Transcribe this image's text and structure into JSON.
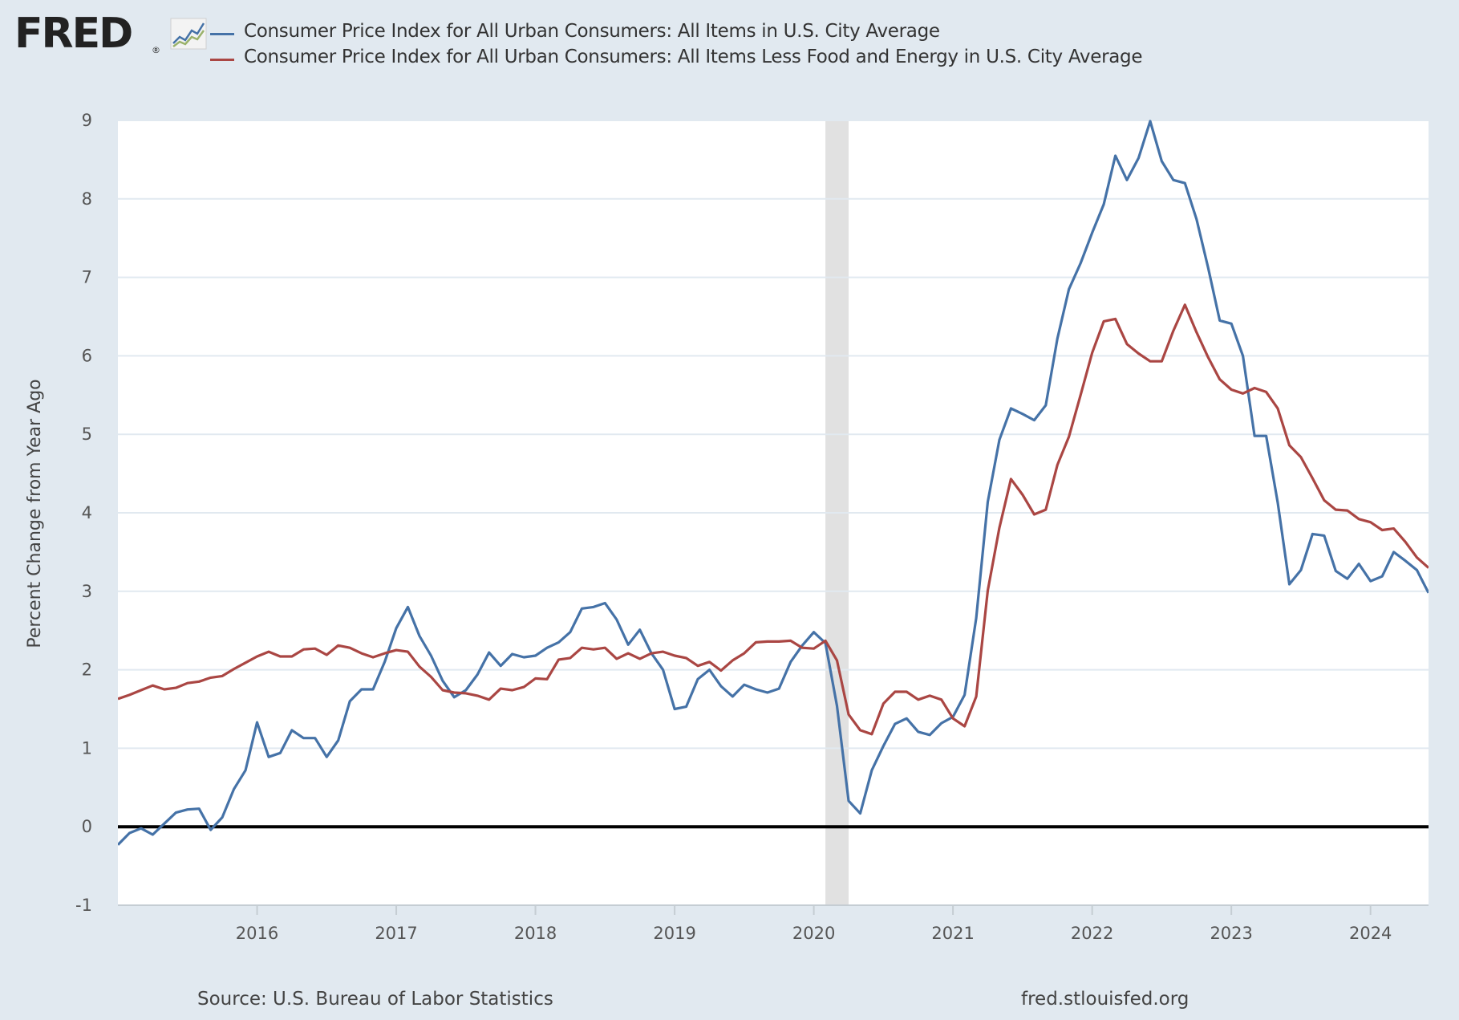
{
  "logo": {
    "text": "FRED",
    "reg": "®"
  },
  "footer": {
    "source": "Source: U.S. Bureau of Labor Statistics",
    "site": "fred.stlouisfed.org"
  },
  "colors": {
    "background": "#e1e9f0",
    "plot": "#ffffff",
    "grid": "#e1e9f0",
    "recession": "#e1e1e1",
    "zero_line": "#000000"
  },
  "chart_data": {
    "type": "line",
    "title": "",
    "xlabel": "",
    "ylabel": "Percent Change from Year Ago",
    "ylim": [
      -1,
      9
    ],
    "xlim": [
      "2015-01",
      "2024-06"
    ],
    "y_ticks": [
      "-1",
      "0",
      "1",
      "2",
      "3",
      "4",
      "5",
      "6",
      "7",
      "8",
      "9"
    ],
    "x_ticks": [
      "2016",
      "2017",
      "2018",
      "2019",
      "2020",
      "2021",
      "2022",
      "2023",
      "2024"
    ],
    "grid": true,
    "legend": "top",
    "recession": {
      "start": "2020-02",
      "end": "2020-04"
    },
    "x": [
      "2015-01",
      "2015-02",
      "2015-03",
      "2015-04",
      "2015-05",
      "2015-06",
      "2015-07",
      "2015-08",
      "2015-09",
      "2015-10",
      "2015-11",
      "2015-12",
      "2016-01",
      "2016-02",
      "2016-03",
      "2016-04",
      "2016-05",
      "2016-06",
      "2016-07",
      "2016-08",
      "2016-09",
      "2016-10",
      "2016-11",
      "2016-12",
      "2017-01",
      "2017-02",
      "2017-03",
      "2017-04",
      "2017-05",
      "2017-06",
      "2017-07",
      "2017-08",
      "2017-09",
      "2017-10",
      "2017-11",
      "2017-12",
      "2018-01",
      "2018-02",
      "2018-03",
      "2018-04",
      "2018-05",
      "2018-06",
      "2018-07",
      "2018-08",
      "2018-09",
      "2018-10",
      "2018-11",
      "2018-12",
      "2019-01",
      "2019-02",
      "2019-03",
      "2019-04",
      "2019-05",
      "2019-06",
      "2019-07",
      "2019-08",
      "2019-09",
      "2019-10",
      "2019-11",
      "2019-12",
      "2020-01",
      "2020-02",
      "2020-03",
      "2020-04",
      "2020-05",
      "2020-06",
      "2020-07",
      "2020-08",
      "2020-09",
      "2020-10",
      "2020-11",
      "2020-12",
      "2021-01",
      "2021-02",
      "2021-03",
      "2021-04",
      "2021-05",
      "2021-06",
      "2021-07",
      "2021-08",
      "2021-09",
      "2021-10",
      "2021-11",
      "2021-12",
      "2022-01",
      "2022-02",
      "2022-03",
      "2022-04",
      "2022-05",
      "2022-06",
      "2022-07",
      "2022-08",
      "2022-09",
      "2022-10",
      "2022-11",
      "2022-12",
      "2023-01",
      "2023-02",
      "2023-03",
      "2023-04",
      "2023-05",
      "2023-06",
      "2023-07",
      "2023-08",
      "2023-09",
      "2023-10",
      "2023-11",
      "2023-12",
      "2024-01",
      "2024-02",
      "2024-03",
      "2024-04",
      "2024-05",
      "2024-06"
    ],
    "series": [
      {
        "name": "Consumer Price Index for All Urban Consumers: All Items in U.S. City Average",
        "color": "#4572a7",
        "values": [
          -0.23,
          -0.08,
          -0.02,
          -0.1,
          0.04,
          0.18,
          0.22,
          0.23,
          -0.04,
          0.12,
          0.48,
          0.72,
          1.33,
          0.89,
          0.94,
          1.23,
          1.13,
          1.13,
          0.89,
          1.1,
          1.6,
          1.75,
          1.75,
          2.1,
          2.53,
          2.8,
          2.43,
          2.18,
          1.86,
          1.65,
          1.74,
          1.94,
          2.22,
          2.05,
          2.2,
          2.16,
          2.18,
          2.28,
          2.35,
          2.48,
          2.78,
          2.8,
          2.85,
          2.64,
          2.32,
          2.51,
          2.21,
          2.0,
          1.5,
          1.53,
          1.88,
          2.0,
          1.79,
          1.66,
          1.81,
          1.75,
          1.71,
          1.76,
          2.1,
          2.31,
          2.48,
          2.34,
          1.54,
          0.33,
          0.17,
          0.72,
          1.03,
          1.31,
          1.38,
          1.21,
          1.17,
          1.32,
          1.4,
          1.68,
          2.66,
          4.14,
          4.93,
          5.33,
          5.26,
          5.18,
          5.37,
          6.22,
          6.85,
          7.18,
          7.57,
          7.93,
          8.55,
          8.24,
          8.52,
          8.99,
          8.48,
          8.24,
          8.2,
          7.74,
          7.12,
          6.45,
          6.41,
          6.0,
          4.98,
          4.98,
          4.13,
          3.09,
          3.27,
          3.73,
          3.71,
          3.26,
          3.16,
          3.35,
          3.13,
          3.19,
          3.5,
          3.39,
          3.27,
          2.98
        ]
      },
      {
        "name": "Consumer Price Index for All Urban Consumers: All Items Less Food and Energy in U.S. City Average",
        "color": "#aa4643",
        "values": [
          1.63,
          1.68,
          1.74,
          1.8,
          1.75,
          1.77,
          1.83,
          1.85,
          1.9,
          1.92,
          2.01,
          2.09,
          2.17,
          2.23,
          2.17,
          2.17,
          2.26,
          2.27,
          2.19,
          2.31,
          2.28,
          2.21,
          2.16,
          2.21,
          2.25,
          2.23,
          2.04,
          1.91,
          1.74,
          1.71,
          1.7,
          1.67,
          1.62,
          1.76,
          1.74,
          1.78,
          1.89,
          1.88,
          2.13,
          2.15,
          2.28,
          2.26,
          2.28,
          2.14,
          2.21,
          2.14,
          2.21,
          2.23,
          2.18,
          2.15,
          2.05,
          2.1,
          1.99,
          2.12,
          2.21,
          2.35,
          2.36,
          2.36,
          2.37,
          2.28,
          2.27,
          2.37,
          2.12,
          1.43,
          1.23,
          1.18,
          1.57,
          1.72,
          1.72,
          1.62,
          1.67,
          1.62,
          1.38,
          1.28,
          1.66,
          3.01,
          3.81,
          4.43,
          4.23,
          3.98,
          4.04,
          4.61,
          4.97,
          5.5,
          6.04,
          6.44,
          6.47,
          6.15,
          6.03,
          5.93,
          5.93,
          6.32,
          6.65,
          6.3,
          5.98,
          5.7,
          5.57,
          5.52,
          5.59,
          5.54,
          5.33,
          4.86,
          4.71,
          4.44,
          4.16,
          4.04,
          4.03,
          3.92,
          3.88,
          3.78,
          3.8,
          3.63,
          3.43,
          3.3
        ]
      }
    ]
  }
}
